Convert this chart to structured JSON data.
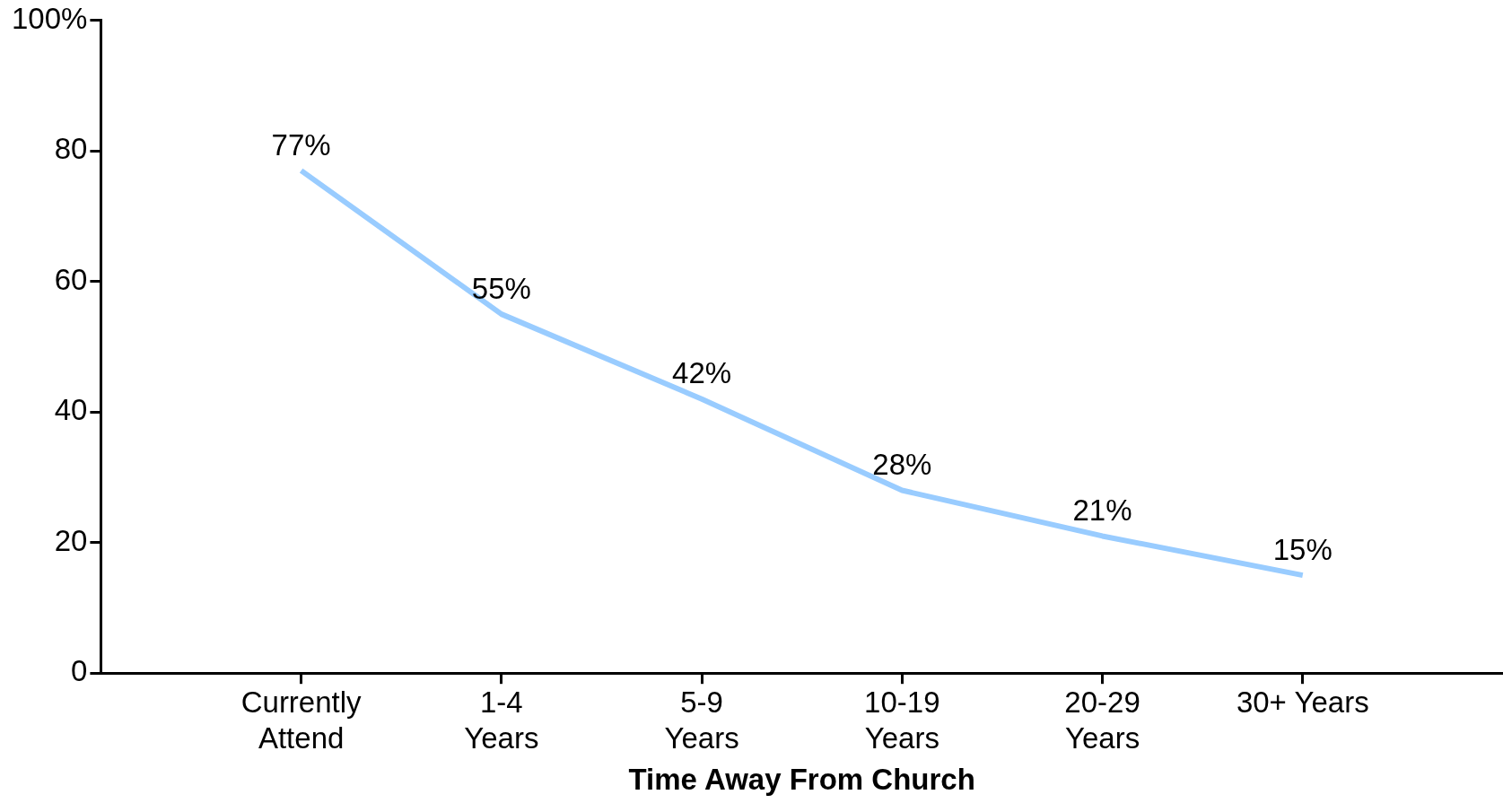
{
  "chart_data": {
    "type": "line",
    "xlabel": "Time Away From Church",
    "categories": [
      "Currently\nAttend",
      "1-4\nYears",
      "5-9\nYears",
      "10-19\nYears",
      "20-29\nYears",
      "30+ Years"
    ],
    "series": [
      {
        "color": "#99ccff",
        "values": [
          77,
          55,
          42,
          28,
          21,
          15
        ],
        "value_labels": [
          "77%",
          "55%",
          "42%",
          "28%",
          "21%",
          "15%"
        ]
      }
    ],
    "ylim": [
      0,
      100
    ],
    "yticks": [
      0,
      20,
      40,
      60,
      80,
      {
        "value": 100,
        "label": "100%"
      }
    ],
    "grid": false,
    "legend": false,
    "marker": "none",
    "line_style": "solid"
  }
}
